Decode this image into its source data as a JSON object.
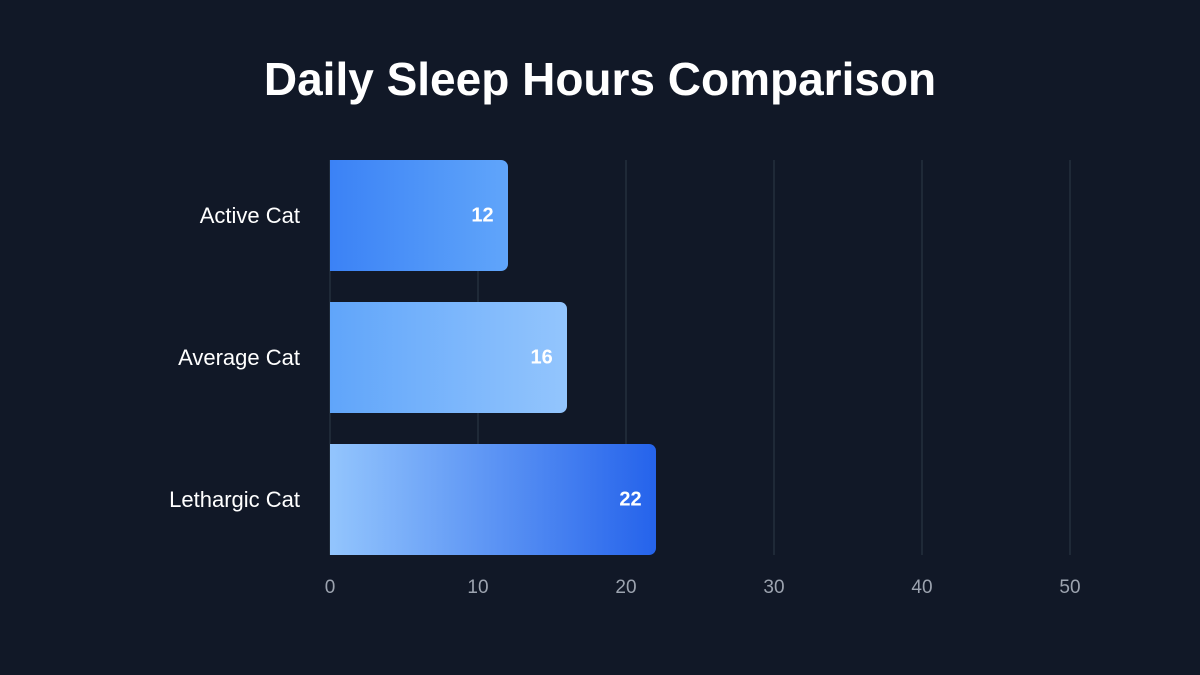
{
  "chart_data": {
    "type": "bar",
    "orientation": "horizontal",
    "title": "Daily Sleep Hours Comparison",
    "categories": [
      "Active Cat",
      "Average Cat",
      "Lethargic Cat"
    ],
    "values": [
      12,
      16,
      22
    ],
    "xlabel": "",
    "ylabel": "",
    "xlim": [
      0,
      50
    ],
    "xticks": [
      "0",
      "10",
      "20",
      "30",
      "40",
      "50"
    ],
    "grid": true,
    "bar_gradients": [
      [
        "#3b82f6",
        "#60a5fa"
      ],
      [
        "#60a5fa",
        "#93c5fd"
      ],
      [
        "#93c5fd",
        "#2563eb"
      ]
    ]
  },
  "labels": [
    "12",
    "16",
    "22"
  ]
}
